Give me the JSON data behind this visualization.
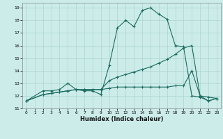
{
  "xlabel": "Humidex (Indice chaleur)",
  "background_color": "#ccecea",
  "grid_color": "#aad4d0",
  "line_color": "#1a6b5e",
  "xlim": [
    -0.5,
    23.5
  ],
  "ylim": [
    11,
    19.4
  ],
  "yticks": [
    11,
    12,
    13,
    14,
    15,
    16,
    17,
    18,
    19
  ],
  "xticks": [
    0,
    1,
    2,
    3,
    4,
    5,
    6,
    7,
    8,
    9,
    10,
    11,
    12,
    13,
    14,
    15,
    16,
    17,
    18,
    19,
    20,
    21,
    22,
    23
  ],
  "series1_x": [
    0,
    2,
    3,
    4,
    5,
    6,
    7,
    8,
    9,
    10,
    11,
    12,
    13,
    14,
    15,
    16,
    17,
    18,
    19,
    20,
    21,
    22,
    23
  ],
  "series1_y": [
    11.6,
    12.4,
    12.4,
    12.5,
    13.0,
    12.5,
    12.4,
    12.4,
    12.1,
    14.4,
    17.4,
    18.0,
    17.5,
    18.8,
    19.0,
    18.5,
    18.1,
    16.0,
    15.9,
    12.0,
    11.9,
    11.6,
    11.8
  ],
  "series2_x": [
    0,
    2,
    3,
    4,
    5,
    6,
    7,
    8,
    9,
    10,
    11,
    12,
    13,
    14,
    15,
    16,
    17,
    18,
    19,
    20,
    21,
    22,
    23
  ],
  "series2_y": [
    11.6,
    12.1,
    12.2,
    12.3,
    12.4,
    12.5,
    12.5,
    12.5,
    12.5,
    13.2,
    13.5,
    13.7,
    13.9,
    14.1,
    14.3,
    14.6,
    14.9,
    15.3,
    15.8,
    16.0,
    12.0,
    11.9,
    11.8
  ],
  "series3_x": [
    0,
    2,
    3,
    4,
    5,
    6,
    7,
    8,
    9,
    10,
    11,
    12,
    13,
    14,
    15,
    16,
    17,
    18,
    19,
    20,
    21,
    22,
    23
  ],
  "series3_y": [
    11.6,
    12.1,
    12.2,
    12.3,
    12.4,
    12.5,
    12.5,
    12.5,
    12.5,
    12.6,
    12.7,
    12.7,
    12.7,
    12.7,
    12.7,
    12.7,
    12.7,
    12.8,
    12.8,
    14.0,
    12.0,
    11.6,
    11.8
  ]
}
